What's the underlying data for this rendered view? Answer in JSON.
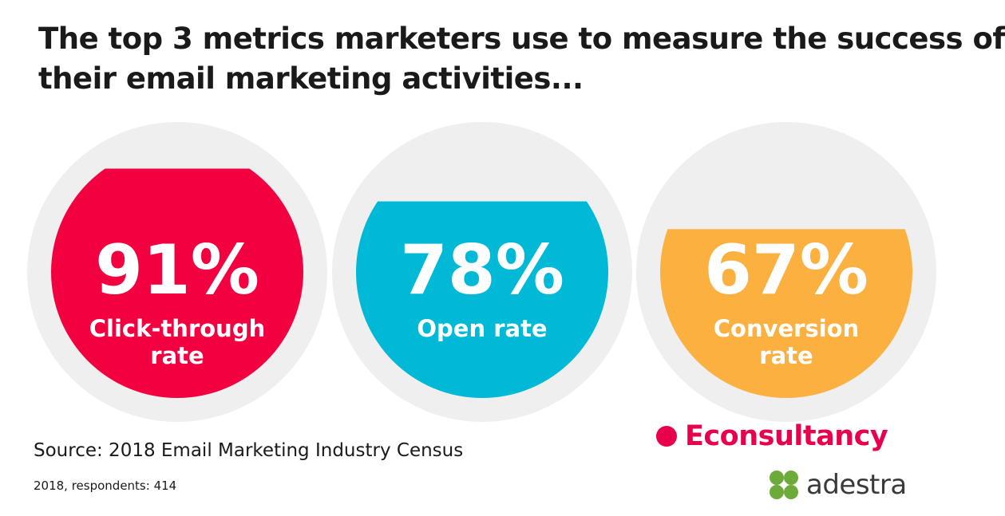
{
  "title_lines": [
    "The top 3 metrics marketers use to measure the success of",
    "their email marketing activities..."
  ],
  "chart_data": {
    "type": "gauge",
    "title": "The top 3 metrics marketers use to measure the success of their email marketing activities...",
    "categories": [
      "Click-through rate",
      "Open rate",
      "Conversion rate"
    ],
    "values": [
      91,
      78,
      67
    ],
    "unit": "%",
    "items": [
      {
        "value": 91,
        "value_label": "91%",
        "label_lines": [
          "Click-through",
          "rate"
        ],
        "color": "#f2003f"
      },
      {
        "value": 78,
        "value_label": "78%",
        "label_lines": [
          "Open rate"
        ],
        "color": "#00b9d6"
      },
      {
        "value": 67,
        "value_label": "67%",
        "label_lines": [
          "Conversion",
          "rate"
        ],
        "color": "#fbb040"
      }
    ],
    "track_color": "#efefef"
  },
  "footer": {
    "source": "Source: 2018 Email Marketing Industry Census",
    "respondents": "2018, respondents: 414"
  },
  "brands": {
    "econsultancy": {
      "name": "Econsultancy",
      "color": "#e8004c"
    },
    "adestra": {
      "name": "adestra",
      "color": "#3a3a3a",
      "mark_color": "#6cab3a"
    }
  }
}
